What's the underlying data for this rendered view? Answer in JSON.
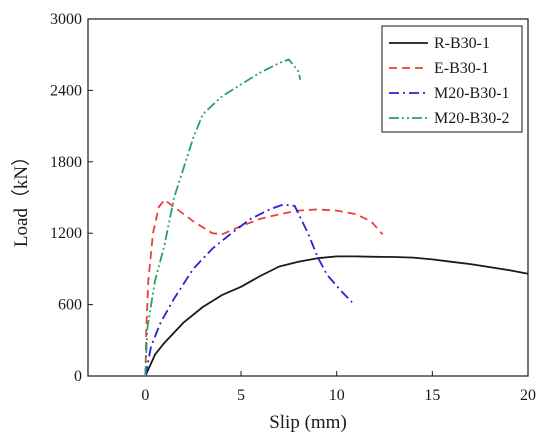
{
  "chart_data": {
    "type": "line",
    "xlabel": "Slip (mm)",
    "ylabel": "Load（kN）",
    "xlim": [
      -3,
      20
    ],
    "ylim": [
      0,
      3000
    ],
    "xticks": [
      0,
      5,
      10,
      15,
      20
    ],
    "yticks": [
      0,
      600,
      1200,
      1800,
      2400,
      3000
    ],
    "grid": false,
    "legend_position": "top-right",
    "series": [
      {
        "name": "R-B30-1",
        "color": "#1a1a1a",
        "dash": "solid",
        "points": [
          [
            0,
            0
          ],
          [
            0.5,
            180
          ],
          [
            1,
            280
          ],
          [
            2,
            450
          ],
          [
            3,
            580
          ],
          [
            4,
            680
          ],
          [
            5,
            750
          ],
          [
            6,
            840
          ],
          [
            7,
            920
          ],
          [
            8,
            960
          ],
          [
            9,
            990
          ],
          [
            10,
            1005
          ],
          [
            11,
            1005
          ],
          [
            12,
            1002
          ],
          [
            13,
            1000
          ],
          [
            14,
            995
          ],
          [
            15,
            980
          ],
          [
            16,
            960
          ],
          [
            17,
            940
          ],
          [
            18,
            915
          ],
          [
            19,
            890
          ],
          [
            20,
            860
          ]
        ]
      },
      {
        "name": "E-B30-1",
        "color": "#e8413d",
        "dash": "dashed",
        "points": [
          [
            0,
            0
          ],
          [
            0.05,
            400
          ],
          [
            0.15,
            800
          ],
          [
            0.4,
            1200
          ],
          [
            0.7,
            1420
          ],
          [
            1,
            1480
          ],
          [
            1.5,
            1420
          ],
          [
            2.5,
            1300
          ],
          [
            3.5,
            1200
          ],
          [
            4,
            1190
          ],
          [
            5,
            1260
          ],
          [
            6,
            1320
          ],
          [
            7,
            1360
          ],
          [
            8,
            1390
          ],
          [
            9,
            1400
          ],
          [
            10,
            1390
          ],
          [
            11,
            1360
          ],
          [
            11.8,
            1300
          ],
          [
            12.4,
            1190
          ]
        ]
      },
      {
        "name": "M20-B30-1",
        "color": "#2323d6",
        "dash": "dashdot",
        "points": [
          [
            0,
            0
          ],
          [
            0.3,
            250
          ],
          [
            0.8,
            450
          ],
          [
            1.5,
            650
          ],
          [
            2.5,
            900
          ],
          [
            3.5,
            1070
          ],
          [
            4.5,
            1200
          ],
          [
            5.5,
            1320
          ],
          [
            6.5,
            1400
          ],
          [
            7.2,
            1440
          ],
          [
            7.8,
            1430
          ],
          [
            8.5,
            1200
          ],
          [
            9,
            1000
          ],
          [
            9.5,
            850
          ],
          [
            10.2,
            720
          ],
          [
            10.8,
            620
          ]
        ]
      },
      {
        "name": "M20-B30-2",
        "color": "#2e9e6e",
        "dash": "dashdotdot",
        "points": [
          [
            0,
            0
          ],
          [
            0.1,
            400
          ],
          [
            0.5,
            800
          ],
          [
            1,
            1100
          ],
          [
            1.5,
            1500
          ],
          [
            2,
            1750
          ],
          [
            2.5,
            2000
          ],
          [
            3,
            2200
          ],
          [
            4,
            2350
          ],
          [
            5,
            2450
          ],
          [
            6,
            2550
          ],
          [
            7,
            2630
          ],
          [
            7.5,
            2660
          ],
          [
            8,
            2560
          ],
          [
            8.1,
            2490
          ]
        ]
      }
    ]
  }
}
